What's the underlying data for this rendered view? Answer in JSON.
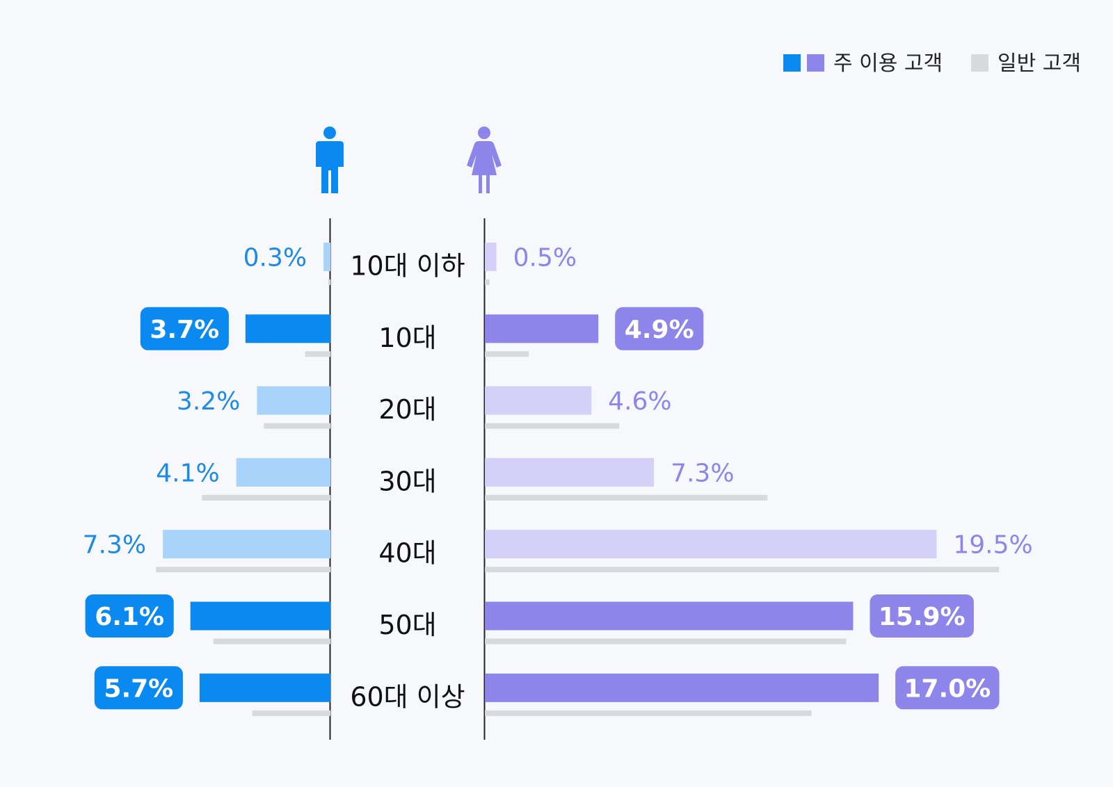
{
  "legend": {
    "main_label": "주 이용 고객",
    "general_label": "일반 고객"
  },
  "colors": {
    "male_main": "#0a8af0",
    "male_light": "#a8d4fb",
    "female_main": "#8e85ea",
    "female_light": "#d4d0f8",
    "general": "#d7d9dc",
    "male_text": "#1c8ae6",
    "female_text": "#8e85ea",
    "axis": "#222222"
  },
  "icons": {
    "male": "male-person-icon",
    "female": "female-person-icon"
  },
  "chart_data": {
    "type": "bar",
    "orientation": "horizontal-butterfly",
    "categories": [
      "10대 이하",
      "10대",
      "20대",
      "30대",
      "40대",
      "50대",
      "60대 이상"
    ],
    "series": [
      {
        "name": "남성",
        "values": [
          0.3,
          3.7,
          3.2,
          4.1,
          7.3,
          6.1,
          5.7
        ],
        "labels": [
          "0.3%",
          "3.7%",
          "3.2%",
          "4.1%",
          "7.3%",
          "6.1%",
          "5.7%"
        ],
        "general_values": [
          0.1,
          1.1,
          2.9,
          5.6,
          7.6,
          5.1,
          3.4
        ],
        "main_customer": [
          false,
          true,
          false,
          false,
          false,
          true,
          true
        ]
      },
      {
        "name": "여성",
        "values": [
          0.5,
          4.9,
          4.6,
          7.3,
          19.5,
          15.9,
          17.0
        ],
        "labels": [
          "0.5%",
          "4.9%",
          "4.6%",
          "7.3%",
          "19.5%",
          "15.9%",
          "17.0%"
        ],
        "general_values": [
          0.2,
          1.9,
          5.8,
          12.2,
          22.2,
          15.6,
          14.1
        ],
        "main_customer": [
          false,
          true,
          false,
          false,
          false,
          true,
          true
        ]
      }
    ],
    "unit": "%"
  }
}
